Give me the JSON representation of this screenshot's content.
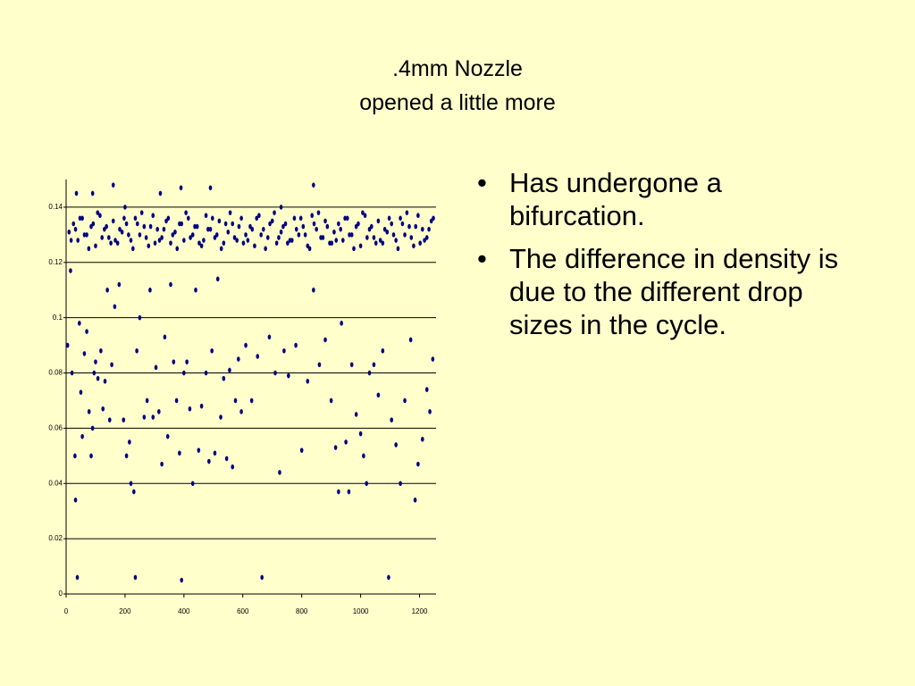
{
  "chart_data": {
    "type": "scatter",
    "title": ".4mm Nozzle",
    "subtitle": "opened a little more",
    "xlim": [
      0,
      1250
    ],
    "xticks": [
      0,
      200,
      400,
      600,
      800,
      1000,
      1200
    ],
    "ylim": [
      0,
      0.15
    ],
    "yticks": [
      0,
      0.02,
      0.04,
      0.06,
      0.08,
      0.1,
      0.12,
      0.14
    ],
    "grid": true,
    "series": [
      {
        "color": "#000080",
        "x": [
          10,
          25,
          40,
          55,
          70,
          85,
          100,
          115,
          130,
          145,
          160,
          175,
          190,
          205,
          220,
          235,
          250,
          265,
          280,
          295,
          310,
          325,
          340,
          355,
          370,
          385,
          400,
          415,
          430,
          445,
          460,
          475,
          490,
          505,
          520,
          535,
          550,
          565,
          580,
          595,
          610,
          625,
          640,
          655,
          670,
          685,
          700,
          715,
          730,
          745,
          760,
          775,
          790,
          805,
          820,
          835,
          850,
          865,
          880,
          895,
          910,
          925,
          940,
          955,
          970,
          985,
          1000,
          1015,
          1030,
          1045,
          1060,
          1075,
          1090,
          1105,
          1120,
          1135,
          1150,
          1165,
          1180,
          1195,
          1210,
          1225,
          1240,
          17,
          32,
          47,
          62,
          77,
          92,
          107,
          122,
          137,
          152,
          167,
          182,
          197,
          212,
          227,
          242,
          257,
          272,
          287,
          302,
          317,
          332,
          347,
          362,
          377,
          392,
          407,
          422,
          437,
          452,
          467,
          482,
          497,
          512,
          527,
          542,
          557,
          572,
          587,
          602,
          617,
          632,
          647,
          662,
          677,
          692,
          707,
          722,
          737,
          752,
          767,
          782,
          797,
          812,
          827,
          842,
          857,
          872,
          887,
          902,
          917,
          932,
          947,
          962,
          977,
          992,
          1007,
          1022,
          1037,
          1052,
          1067,
          1082,
          1097,
          1112,
          1127,
          1142,
          1157,
          1172,
          1187,
          1202,
          1217,
          1232,
          1247,
          5,
          15,
          20,
          30,
          32,
          38,
          45,
          50,
          55,
          62,
          70,
          78,
          85,
          90,
          95,
          100,
          108,
          118,
          125,
          132,
          140,
          148,
          155,
          165,
          180,
          195,
          205,
          215,
          220,
          230,
          235,
          240,
          250,
          265,
          275,
          285,
          295,
          305,
          315,
          325,
          335,
          345,
          355,
          365,
          375,
          385,
          392,
          400,
          410,
          420,
          430,
          440,
          450,
          460,
          475,
          485,
          495,
          505,
          515,
          525,
          535,
          545,
          555,
          565,
          575,
          585,
          595,
          610,
          630,
          650,
          665,
          690,
          710,
          725,
          740,
          755,
          780,
          800,
          820,
          840,
          860,
          880,
          900,
          915,
          925,
          935,
          950,
          960,
          970,
          985,
          1000,
          1010,
          1020,
          1030,
          1045,
          1060,
          1075,
          1095,
          1105,
          1120,
          1135,
          1150,
          1170,
          1185,
          1195,
          1210,
          1225,
          1235,
          1245,
          35,
          90,
          160,
          320,
          390,
          490,
          840,
          200,
          730
        ],
        "values": [
          0.131,
          0.134,
          0.128,
          0.136,
          0.13,
          0.133,
          0.126,
          0.137,
          0.132,
          0.129,
          0.135,
          0.127,
          0.131,
          0.134,
          0.128,
          0.136,
          0.13,
          0.133,
          0.126,
          0.137,
          0.132,
          0.129,
          0.135,
          0.127,
          0.131,
          0.134,
          0.128,
          0.136,
          0.13,
          0.133,
          0.126,
          0.137,
          0.132,
          0.129,
          0.135,
          0.127,
          0.131,
          0.134,
          0.128,
          0.136,
          0.13,
          0.133,
          0.126,
          0.137,
          0.132,
          0.129,
          0.135,
          0.127,
          0.131,
          0.134,
          0.128,
          0.136,
          0.13,
          0.133,
          0.126,
          0.137,
          0.132,
          0.129,
          0.135,
          0.127,
          0.131,
          0.134,
          0.128,
          0.136,
          0.13,
          0.133,
          0.126,
          0.137,
          0.132,
          0.129,
          0.135,
          0.127,
          0.131,
          0.134,
          0.128,
          0.136,
          0.13,
          0.133,
          0.126,
          0.137,
          0.132,
          0.129,
          0.135,
          0.128,
          0.132,
          0.136,
          0.13,
          0.125,
          0.134,
          0.138,
          0.129,
          0.133,
          0.127,
          0.128,
          0.132,
          0.136,
          0.13,
          0.125,
          0.134,
          0.138,
          0.129,
          0.133,
          0.127,
          0.128,
          0.132,
          0.136,
          0.13,
          0.125,
          0.134,
          0.138,
          0.129,
          0.133,
          0.127,
          0.128,
          0.132,
          0.136,
          0.13,
          0.125,
          0.134,
          0.138,
          0.129,
          0.133,
          0.127,
          0.128,
          0.132,
          0.136,
          0.13,
          0.125,
          0.134,
          0.138,
          0.129,
          0.133,
          0.127,
          0.128,
          0.132,
          0.136,
          0.13,
          0.125,
          0.134,
          0.138,
          0.129,
          0.133,
          0.127,
          0.128,
          0.132,
          0.136,
          0.13,
          0.125,
          0.134,
          0.138,
          0.129,
          0.133,
          0.127,
          0.128,
          0.132,
          0.136,
          0.13,
          0.125,
          0.134,
          0.138,
          0.129,
          0.133,
          0.127,
          0.128,
          0.132,
          0.136,
          0.09,
          0.117,
          0.08,
          0.05,
          0.034,
          0.006,
          0.098,
          0.073,
          0.057,
          0.087,
          0.095,
          0.066,
          0.05,
          0.06,
          0.08,
          0.084,
          0.078,
          0.088,
          0.067,
          0.077,
          0.11,
          0.063,
          0.083,
          0.104,
          0.112,
          0.063,
          0.05,
          0.055,
          0.04,
          0.037,
          0.006,
          0.088,
          0.1,
          0.064,
          0.07,
          0.11,
          0.064,
          0.082,
          0.066,
          0.047,
          0.093,
          0.057,
          0.112,
          0.084,
          0.07,
          0.051,
          0.005,
          0.08,
          0.084,
          0.067,
          0.04,
          0.11,
          0.052,
          0.068,
          0.08,
          0.048,
          0.088,
          0.051,
          0.114,
          0.064,
          0.078,
          0.049,
          0.081,
          0.046,
          0.07,
          0.085,
          0.066,
          0.09,
          0.07,
          0.086,
          0.006,
          0.093,
          0.08,
          0.044,
          0.088,
          0.079,
          0.09,
          0.052,
          0.077,
          0.11,
          0.083,
          0.092,
          0.07,
          0.053,
          0.037,
          0.098,
          0.055,
          0.037,
          0.083,
          0.065,
          0.058,
          0.05,
          0.04,
          0.08,
          0.083,
          0.072,
          0.088,
          0.006,
          0.063,
          0.054,
          0.04,
          0.07,
          0.092,
          0.034,
          0.047,
          0.056,
          0.074,
          0.066,
          0.085,
          0.145,
          0.145,
          0.148,
          0.145,
          0.147,
          0.147,
          0.148,
          0.14,
          0.14
        ]
      }
    ]
  },
  "bullets": [
    "Has undergone a bifurcation.",
    "The difference in density is due to the different drop sizes in the cycle."
  ]
}
